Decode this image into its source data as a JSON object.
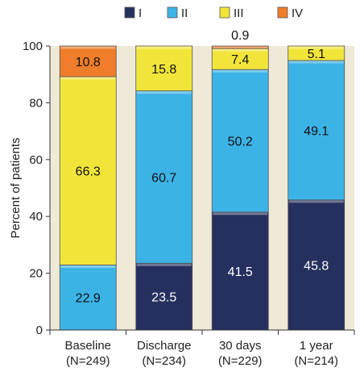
{
  "chart_data": {
    "type": "bar",
    "stacked": true,
    "categories": [
      "Baseline\n(N=249)",
      "Discharge\n(N=234)",
      "30 days\n(N=229)",
      "1 year\n(N=214)"
    ],
    "series": [
      {
        "name": "I",
        "values": [
          0,
          23.5,
          41.5,
          45.8
        ]
      },
      {
        "name": "II",
        "values": [
          22.9,
          60.7,
          50.2,
          49.1
        ]
      },
      {
        "name": "III",
        "values": [
          66.3,
          15.8,
          7.4,
          5.1
        ]
      },
      {
        "name": "IV",
        "values": [
          10.8,
          0,
          0.9,
          0
        ]
      }
    ],
    "data_labels": [
      [
        "",
        "22.9",
        "66.3",
        "10.8"
      ],
      [
        "23.5",
        "60.7",
        "15.8",
        ""
      ],
      [
        "41.5",
        "50.2",
        "7.4",
        "0.9"
      ],
      [
        "45.8",
        "49.1",
        "5.1",
        ""
      ]
    ],
    "colors": [
      "#25305f",
      "#3cb3e6",
      "#f2e53a",
      "#ef7d2a"
    ],
    "label_colors": [
      "#ffffff",
      "#111111",
      "#111111",
      "#111111"
    ],
    "plot_background": "#efe9d8",
    "ylabel": "Percent of patients",
    "xlabel": "",
    "ylim": [
      0,
      100
    ],
    "yticks": [
      0,
      20,
      40,
      60,
      80,
      100
    ],
    "grid": false,
    "legend_position": "top"
  }
}
